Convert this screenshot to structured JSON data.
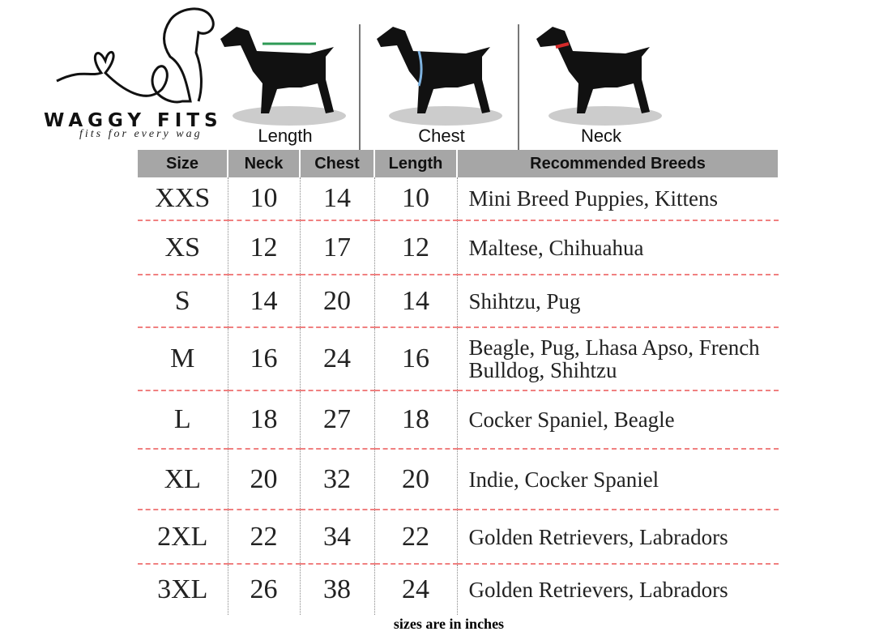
{
  "brand": {
    "name": "WAGGY FITS",
    "tagline": "fits for every wag"
  },
  "diagrams": [
    {
      "label": "Length",
      "marker_color": "#2e9a55"
    },
    {
      "label": "Chest",
      "marker_color": "#7fb3e0"
    },
    {
      "label": "Neck",
      "marker_color": "#d42a2a"
    }
  ],
  "table": {
    "headers": [
      "Size",
      "Neck",
      "Chest",
      "Length",
      "Recommended Breeds"
    ],
    "rows": [
      {
        "size": "XXS",
        "neck": "10",
        "chest": "14",
        "length": "10",
        "breeds": "Mini Breed Puppies, Kittens"
      },
      {
        "size": "XS",
        "neck": "12",
        "chest": "17",
        "length": "12",
        "breeds": "Maltese, Chihuahua"
      },
      {
        "size": "S",
        "neck": "14",
        "chest": "20",
        "length": "14",
        "breeds": "Shihtzu, Pug"
      },
      {
        "size": "M",
        "neck": "16",
        "chest": "24",
        "length": "16",
        "breeds": "Beagle, Pug, Lhasa Apso, French Bulldog, Shihtzu"
      },
      {
        "size": "L",
        "neck": "18",
        "chest": "27",
        "length": "18",
        "breeds": "Cocker Spaniel, Beagle"
      },
      {
        "size": "XL",
        "neck": "20",
        "chest": "32",
        "length": "20",
        "breeds": "Indie, Cocker Spaniel"
      },
      {
        "size": "2XL",
        "neck": "22",
        "chest": "34",
        "length": "22",
        "breeds": "Golden Retrievers, Labradors"
      },
      {
        "size": "3XL",
        "neck": "26",
        "chest": "38",
        "length": "24",
        "breeds": "Golden Retrievers, Labradors"
      }
    ]
  },
  "note": "sizes are in inches"
}
